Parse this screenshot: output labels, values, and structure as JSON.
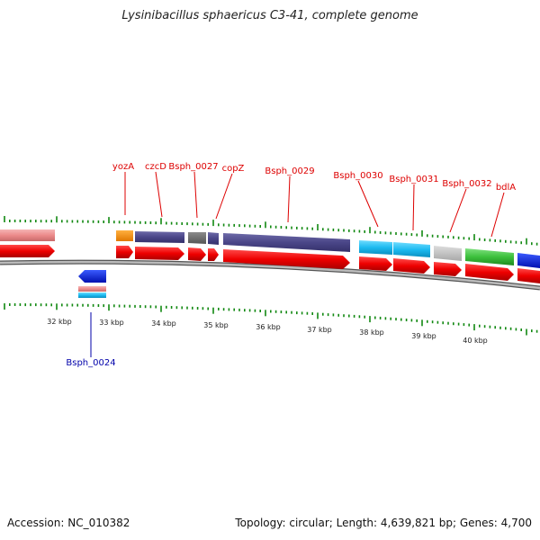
{
  "title": "Lysinibacillus sphaericus C3-41, complete genome",
  "footer": {
    "accession": "Accession: NC_010382",
    "summary": "Topology: circular; Length: 4,639,821 bp; Genes: 4,700"
  },
  "colors": {
    "label_forward": "#dd0000",
    "label_reverse": "#0000aa",
    "cds": "#ee0000",
    "tick": "#118811",
    "backbone": "#888888"
  },
  "scale": {
    "ticks": [
      "32 kbp",
      "33 kbp",
      "34 kbp",
      "35 kbp",
      "36 kbp",
      "37 kbp",
      "38 kbp",
      "39 kbp",
      "40 kbp"
    ]
  },
  "gene_labels": [
    {
      "name": "yozA",
      "strand": "forward"
    },
    {
      "name": "czcD",
      "strand": "forward"
    },
    {
      "name": "Bsph_0027",
      "strand": "forward"
    },
    {
      "name": "copZ",
      "strand": "forward"
    },
    {
      "name": "Bsph_0029",
      "strand": "forward"
    },
    {
      "name": "Bsph_0030",
      "strand": "forward"
    },
    {
      "name": "Bsph_0031",
      "strand": "forward"
    },
    {
      "name": "Bsph_0032",
      "strand": "forward"
    },
    {
      "name": "bdlA",
      "strand": "forward"
    },
    {
      "name": "Bsph_0024",
      "strand": "reverse"
    }
  ]
}
